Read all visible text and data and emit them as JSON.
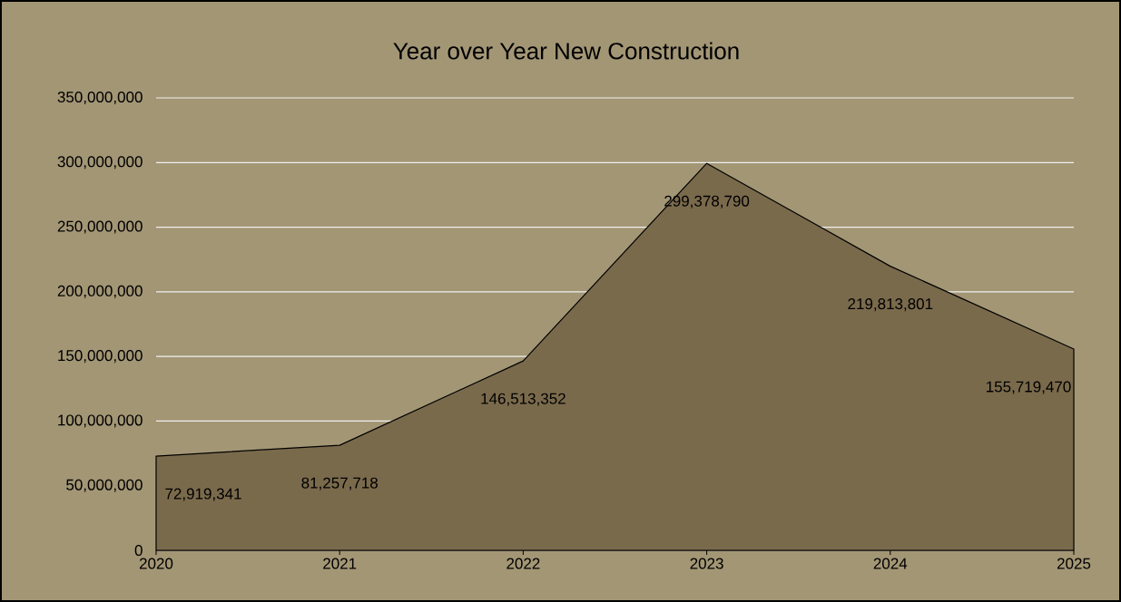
{
  "chart_data": {
    "type": "area",
    "title": "Year over Year New Construction",
    "categories": [
      "2020",
      "2021",
      "2022",
      "2023",
      "2024",
      "2025"
    ],
    "values": [
      72919341,
      81257718,
      146513352,
      299378790,
      219813801,
      155719470
    ],
    "value_labels": [
      "72,919,341",
      "81,257,718",
      "146,513,352",
      "299,378,790",
      "219,813,801",
      "155,719,470"
    ],
    "color": "#7a6a4c",
    "ylim": [
      0,
      350000000
    ],
    "yticks": [
      {
        "value": 0,
        "label": "0"
      },
      {
        "value": 50000000,
        "label": "50,000,000"
      },
      {
        "value": 100000000,
        "label": "100,000,000"
      },
      {
        "value": 150000000,
        "label": "150,000,000"
      },
      {
        "value": 200000000,
        "label": "200,000,000"
      },
      {
        "value": 250000000,
        "label": "250,000,000"
      },
      {
        "value": 300000000,
        "label": "300,000,000"
      },
      {
        "value": 350000000,
        "label": "350,000,000"
      }
    ],
    "grid": "y"
  }
}
